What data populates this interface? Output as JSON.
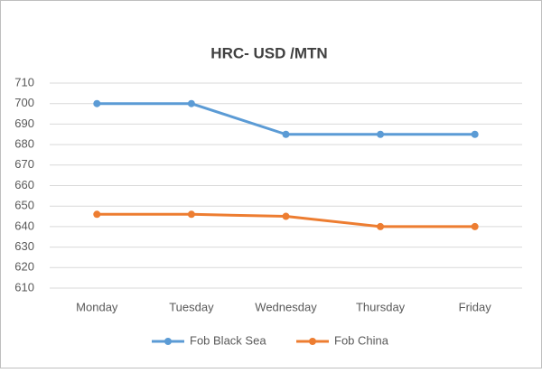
{
  "chart_data": {
    "type": "line",
    "title": "HRC- USD /MTN",
    "categories": [
      "Monday",
      "Tuesday",
      "Wednesday",
      "Thursday",
      "Friday"
    ],
    "series": [
      {
        "name": "Fob Black Sea",
        "color": "#5b9bd5",
        "values": [
          700,
          700,
          685,
          685,
          685
        ]
      },
      {
        "name": "Fob China",
        "color": "#ed7d31",
        "values": [
          646,
          646,
          645,
          640,
          640
        ]
      }
    ],
    "ylim": [
      610,
      710
    ],
    "yticks": [
      610,
      620,
      630,
      640,
      650,
      660,
      670,
      680,
      690,
      700,
      710
    ],
    "grid": true,
    "legend": "bottom"
  }
}
